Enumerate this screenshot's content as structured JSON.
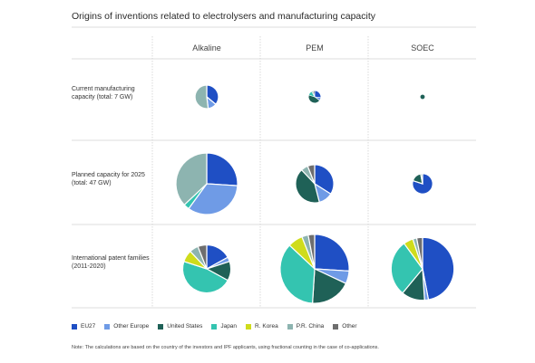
{
  "chart_data": {
    "type": "pie",
    "title": "Origins of inventions related to electrolysers and manufacturing capacity",
    "columns": [
      "Alkaline",
      "PEM",
      "SOEC"
    ],
    "rows": [
      {
        "label": "Current manufacturing capacity (total: 7 GW)"
      },
      {
        "label": "Planned capacity for 2025 (total: 47 GW)"
      },
      {
        "label": "International patent families (2011-2020)"
      }
    ],
    "categories": [
      "EU27",
      "Other Europe",
      "United States",
      "Japan",
      "R. Korea",
      "P.R. China",
      "Other"
    ],
    "colors": {
      "EU27": "#1f4fc4",
      "Other Europe": "#6f9be6",
      "United States": "#1f6157",
      "Japan": "#34c4b0",
      "R. Korea": "#cfdc1c",
      "P.R. China": "#8db4b0",
      "Other": "#6e6e6e"
    },
    "pies": [
      {
        "row": 0,
        "col": 0,
        "relative_size": 0.38,
        "values": [
          0.36,
          0.12,
          0,
          0,
          0,
          0.52,
          0
        ]
      },
      {
        "row": 0,
        "col": 1,
        "relative_size": 0.2,
        "values": [
          0.27,
          0.08,
          0.45,
          0.12,
          0,
          0.04,
          0.04
        ]
      },
      {
        "row": 0,
        "col": 2,
        "relative_size": 0.08,
        "values": [
          0,
          0,
          1,
          0,
          0,
          0,
          0
        ]
      },
      {
        "row": 1,
        "col": 0,
        "relative_size": 1.0,
        "values": [
          0.26,
          0.34,
          0,
          0.03,
          0,
          0.37,
          0
        ]
      },
      {
        "row": 1,
        "col": 1,
        "relative_size": 0.62,
        "values": [
          0.34,
          0.12,
          0.42,
          0,
          0,
          0.06,
          0.06
        ]
      },
      {
        "row": 1,
        "col": 2,
        "relative_size": 0.33,
        "values": [
          0.8,
          0,
          0.17,
          0,
          0,
          0.03,
          0
        ]
      },
      {
        "row": 2,
        "col": 0,
        "relative_size": 0.78,
        "values": [
          0.17,
          0.03,
          0.13,
          0.47,
          0.08,
          0.06,
          0.06
        ]
      },
      {
        "row": 2,
        "col": 1,
        "relative_size": 1.12,
        "values": [
          0.26,
          0.06,
          0.19,
          0.36,
          0.07,
          0.03,
          0.03
        ]
      },
      {
        "row": 2,
        "col": 2,
        "relative_size": 1.02,
        "values": [
          0.47,
          0.02,
          0.12,
          0.29,
          0.05,
          0.02,
          0.03
        ]
      }
    ]
  },
  "note": "Note: The calculations are based on the country of the investors and IPF applicants, using fractional counting in the case of co-applications."
}
